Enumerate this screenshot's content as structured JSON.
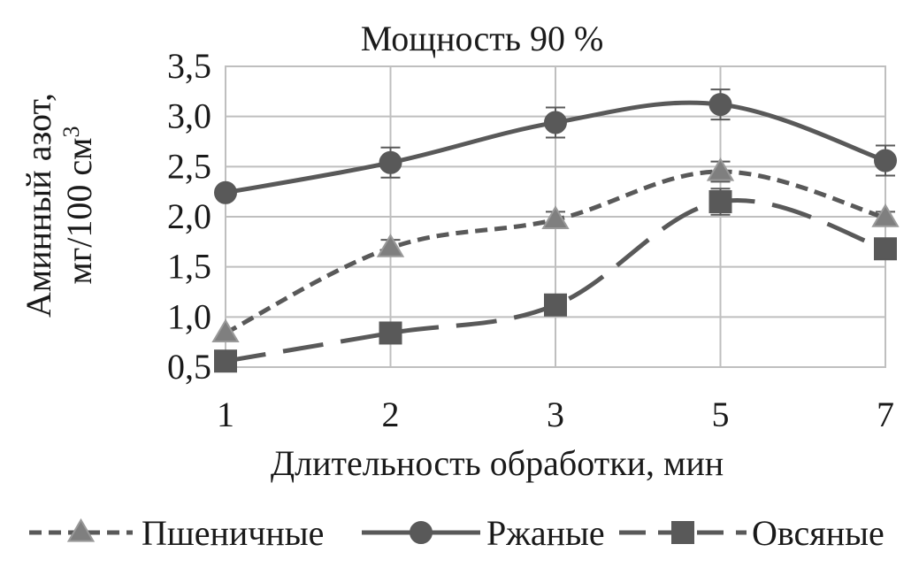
{
  "chart_data": {
    "type": "line",
    "title": "Мощность 90 %",
    "xlabel": "Длительность обработки, мин",
    "ylabel_line1": "Аминный азот,",
    "ylabel_line2_prefix": "мг/100 см",
    "ylabel_line2_sup": "3",
    "categories": [
      "1",
      "2",
      "3",
      "5",
      "7"
    ],
    "yticks": [
      "0,5",
      "1,0",
      "1,5",
      "2,0",
      "2,5",
      "3,0",
      "3,5"
    ],
    "ytick_values": [
      0.5,
      1.0,
      1.5,
      2.0,
      2.5,
      3.0,
      3.5
    ],
    "ylim": [
      0.5,
      3.5
    ],
    "grid": true,
    "legend_position": "bottom",
    "series": [
      {
        "name": "Пшеничные",
        "values": [
          0.84,
          1.69,
          1.97,
          2.45,
          1.99
        ],
        "errors": [
          0,
          0.08,
          0.08,
          0.1,
          0.06
        ],
        "marker": "triangle",
        "line": "dotted",
        "color": "#595959",
        "marker_color": "#7f7f7f"
      },
      {
        "name": "Ржаные",
        "values": [
          2.24,
          2.54,
          2.94,
          3.12,
          2.56
        ],
        "errors": [
          0,
          0.15,
          0.15,
          0.15,
          0.15
        ],
        "marker": "circle",
        "line": "solid",
        "color": "#595959",
        "marker_color": "#595959"
      },
      {
        "name": "Овсяные",
        "values": [
          0.56,
          0.84,
          1.12,
          2.15,
          1.68
        ],
        "errors": [
          0,
          0,
          0,
          0.13,
          0
        ],
        "marker": "square",
        "line": "dashed",
        "color": "#595959",
        "marker_color": "#595959"
      }
    ]
  }
}
